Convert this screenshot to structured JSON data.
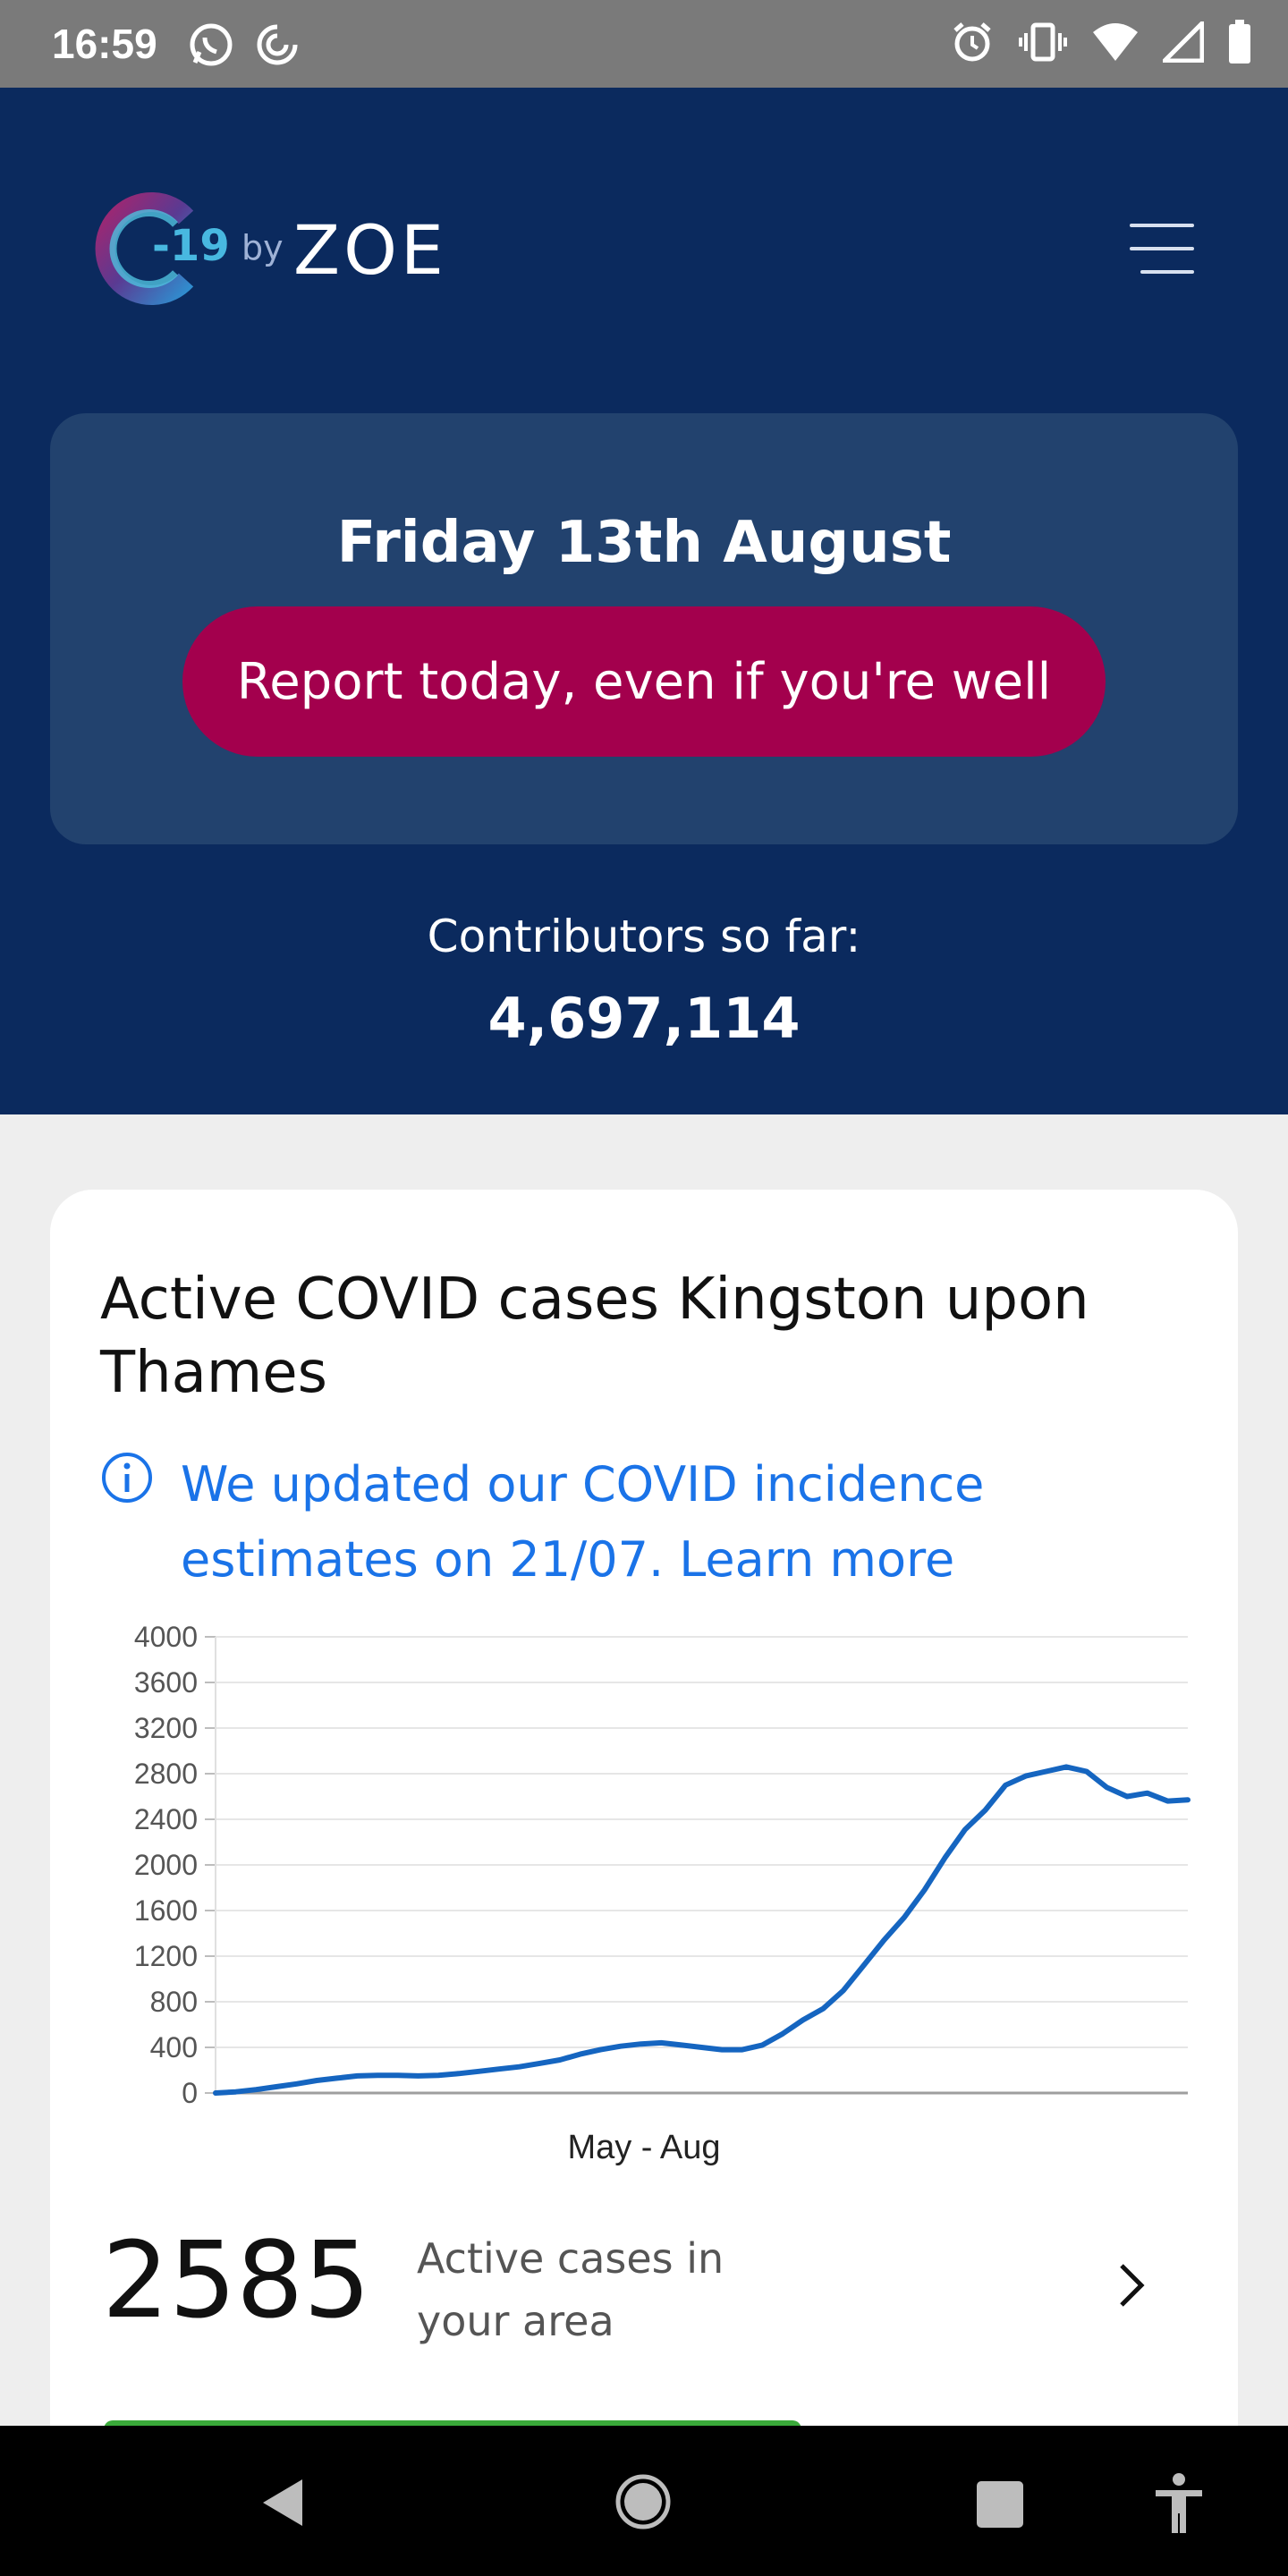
{
  "status_bar": {
    "time": "16:59",
    "left_icons": [
      "whatsapp-icon",
      "sync-icon"
    ],
    "right_icons": [
      "alarm-icon",
      "vibrate-icon",
      "wifi-icon",
      "signal-icon",
      "battery-icon"
    ]
  },
  "header": {
    "logo": {
      "mark": "-19",
      "by": "by",
      "brand": "ZOE"
    },
    "menu_icon": "hamburger-menu-icon"
  },
  "report": {
    "date": "Friday 13th August",
    "button_label": "Report today, even if you're well"
  },
  "contributors": {
    "label": "Contributors so far:",
    "count": "4,697,114"
  },
  "cases_card": {
    "title": "Active COVID cases Kingston upon Thames",
    "info_text": "We updated our COVID incidence estimates on 21/07. Learn more",
    "active_count": "2585",
    "active_label": "Active cases in your area"
  },
  "chart_data": {
    "type": "line",
    "title": "",
    "xlabel": "May - Aug",
    "ylabel": "",
    "ylim": [
      0,
      4000
    ],
    "y_ticks": [
      "4000",
      "3600",
      "3200",
      "2800",
      "2400",
      "2000",
      "1600",
      "1200",
      "800",
      "400",
      "0"
    ],
    "grid": true,
    "color": "#1565c0",
    "series": [
      {
        "values": [
          0,
          10,
          30,
          55,
          80,
          110,
          130,
          150,
          155,
          155,
          150,
          155,
          170,
          190,
          210,
          230,
          260,
          290,
          340,
          380,
          410,
          430,
          440,
          420,
          400,
          380,
          380,
          420,
          520,
          640,
          740,
          900,
          1120,
          1340,
          1540,
          1780,
          2060,
          2310,
          2480,
          2700,
          2780,
          2820,
          2860,
          2820,
          2680,
          2600,
          2630,
          2560,
          2570
        ]
      }
    ]
  },
  "nav_bar": {
    "items": [
      "back-icon",
      "home-icon",
      "recents-icon",
      "accessibility-icon"
    ]
  }
}
